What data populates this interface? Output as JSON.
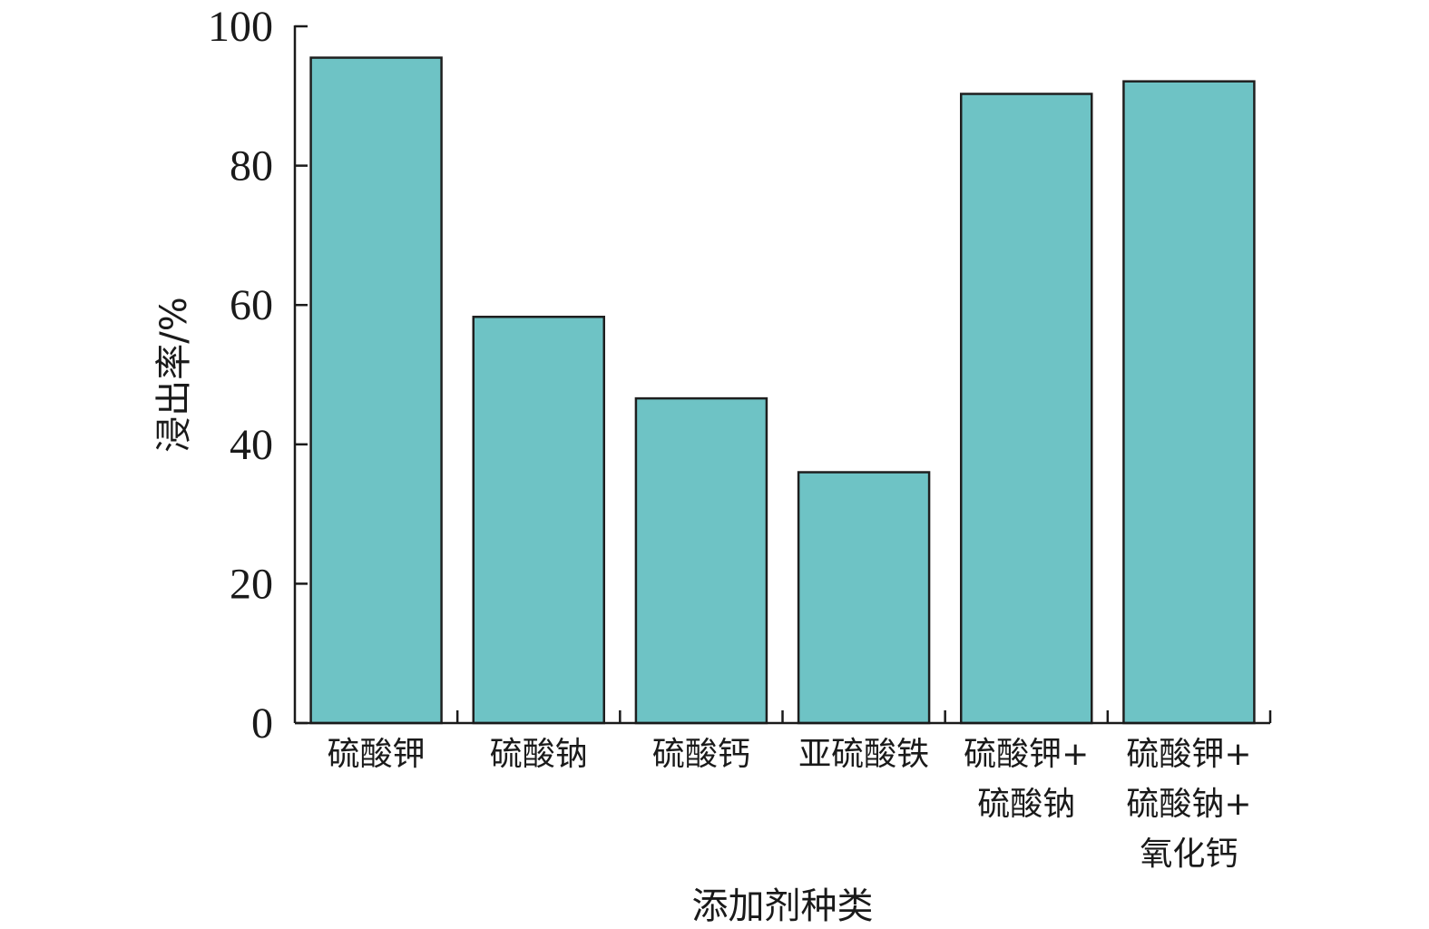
{
  "chart_data": {
    "type": "bar",
    "categories": [
      [
        "硫酸钾"
      ],
      [
        "硫酸钠"
      ],
      [
        "硫酸钙"
      ],
      [
        "亚硫酸铁"
      ],
      [
        "硫酸钾+",
        "硫酸钠"
      ],
      [
        "硫酸钾+",
        "硫酸钠+",
        "氧化钙"
      ]
    ],
    "values": [
      95.5,
      58.3,
      46.6,
      36.0,
      90.3,
      92.1
    ],
    "title": "",
    "xlabel": "添加剂种类",
    "ylabel": "浸出率/%",
    "ylim": [
      0,
      100
    ],
    "yticks": [
      0,
      20,
      40,
      60,
      80,
      100
    ],
    "grid": false,
    "bar_color": "#6ec3c5",
    "edge_color": "#1f1f1f"
  }
}
